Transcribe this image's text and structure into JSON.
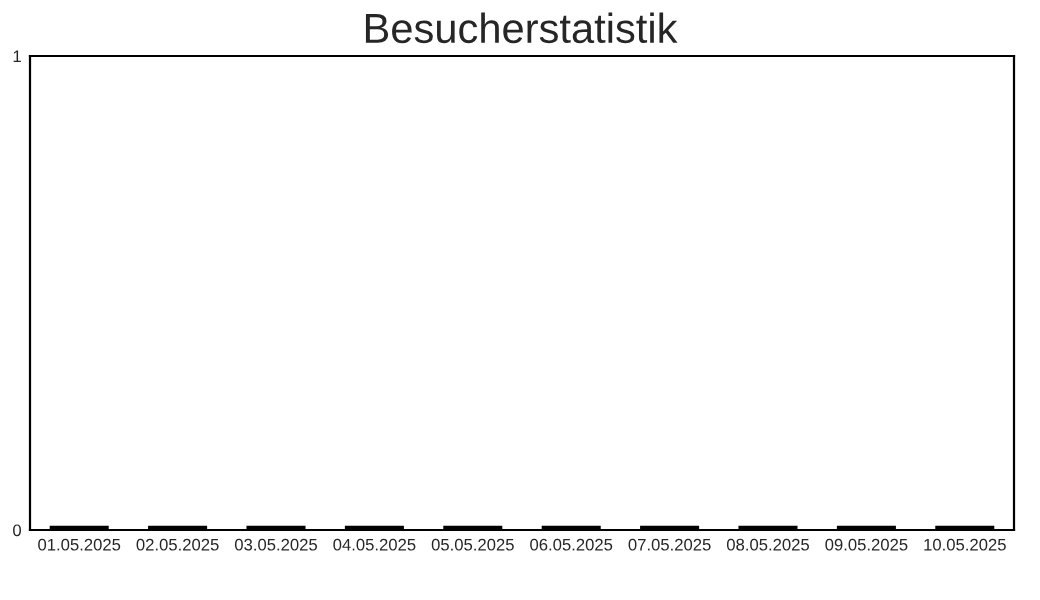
{
  "chart_data": {
    "type": "bar",
    "title": "Besucherstatistik",
    "categories": [
      "01.05.2025",
      "02.05.2025",
      "03.05.2025",
      "04.05.2025",
      "05.05.2025",
      "06.05.2025",
      "07.05.2025",
      "08.05.2025",
      "09.05.2025",
      "10.05.2025"
    ],
    "values": [
      0,
      0,
      0,
      0,
      0,
      0,
      0,
      0,
      0,
      0
    ],
    "color": "#000000",
    "ylim": [
      0,
      1
    ],
    "yticks": [
      0,
      1
    ],
    "grid": false
  }
}
